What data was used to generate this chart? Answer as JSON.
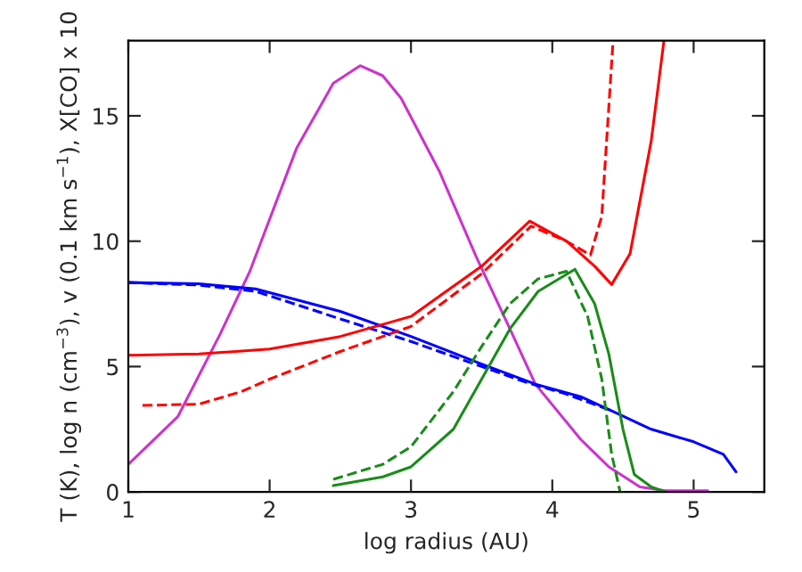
{
  "chart_data": {
    "type": "line",
    "xlabel": "log radius (AU)",
    "ylabel": "T (K), log n (cm$^{−3}$), v (0.1 km s$^{−1}$), X[CO] x 10",
    "xlim": [
      1,
      5.5
    ],
    "ylim": [
      0,
      18
    ],
    "xticks": [
      1,
      2,
      3,
      4,
      5
    ],
    "yticks": [
      0,
      5,
      10,
      15
    ],
    "grid": false,
    "legend": false,
    "series": [
      {
        "color": "#cc33cc",
        "line_style": "solid",
        "x": [
          1,
          1.35,
          1.65,
          1.86,
          2.19,
          2.45,
          2.64,
          2.8,
          2.93,
          3.2,
          3.46,
          3.7,
          3.88,
          4.2,
          4.4,
          4.62,
          4.8,
          5.1
        ],
        "values": [
          1.1,
          3.0,
          6.3,
          8.8,
          13.7,
          16.3,
          17.0,
          16.6,
          15.7,
          12.8,
          9.4,
          6.5,
          4.3,
          2.1,
          1.0,
          0.2,
          0.05,
          0.05
        ]
      },
      {
        "color": "#0000ff",
        "line_style": "solid",
        "x": [
          1,
          1.5,
          1.9,
          2.5,
          3,
          3.5,
          3.88,
          4.2,
          4.41,
          4.7,
          5,
          5.21,
          5.3
        ],
        "values": [
          8.35,
          8.3,
          8.1,
          7.2,
          6.2,
          5.1,
          4.3,
          3.8,
          3.26,
          2.5,
          2.0,
          1.5,
          0.8
        ]
      },
      {
        "color": "#0000ff",
        "line_style": "dashed",
        "x": [
          1,
          1.5,
          1.9,
          2.5,
          3,
          3.5,
          3.8,
          4.1,
          4.41
        ],
        "values": [
          8.35,
          8.25,
          8.0,
          6.9,
          6.0,
          5.0,
          4.4,
          3.9,
          3.26
        ]
      },
      {
        "color": "#ff0000",
        "line_style": "solid",
        "x": [
          1,
          1.5,
          2,
          2.5,
          3,
          3.5,
          3.84,
          4.1,
          4.3,
          4.42,
          4.55,
          4.7,
          4.79
        ],
        "values": [
          5.45,
          5.5,
          5.7,
          6.2,
          7.0,
          9.0,
          10.8,
          10.0,
          9.0,
          8.27,
          9.5,
          14.0,
          18.0
        ]
      },
      {
        "color": "#ff0000",
        "line_style": "dashed",
        "x": [
          1.1,
          1.5,
          1.8,
          2,
          2.5,
          3,
          3.5,
          3.85,
          4.1,
          4.27,
          4.35,
          4.43
        ],
        "values": [
          3.45,
          3.5,
          4.0,
          4.5,
          5.6,
          6.6,
          8.7,
          10.6,
          10.0,
          9.45,
          11.0,
          18.0
        ]
      },
      {
        "color": "#1a8c1a",
        "line_style": "solid",
        "x": [
          2.45,
          2.8,
          3,
          3.3,
          3.5,
          3.7,
          3.9,
          4.16,
          4.3,
          4.4,
          4.5,
          4.58,
          4.7,
          4.8
        ],
        "values": [
          0.25,
          0.6,
          1.0,
          2.5,
          4.5,
          6.5,
          8.0,
          8.88,
          7.5,
          5.5,
          2.5,
          0.7,
          0.2,
          0.0
        ]
      },
      {
        "color": "#1a8c1a",
        "line_style": "dashed",
        "x": [
          2.45,
          2.8,
          3,
          3.3,
          3.5,
          3.7,
          3.9,
          4.1,
          4.25,
          4.35,
          4.42,
          4.48
        ],
        "values": [
          0.5,
          1.1,
          1.8,
          4.0,
          5.8,
          7.5,
          8.5,
          8.8,
          7.0,
          4.5,
          1.5,
          0.0
        ]
      }
    ]
  }
}
